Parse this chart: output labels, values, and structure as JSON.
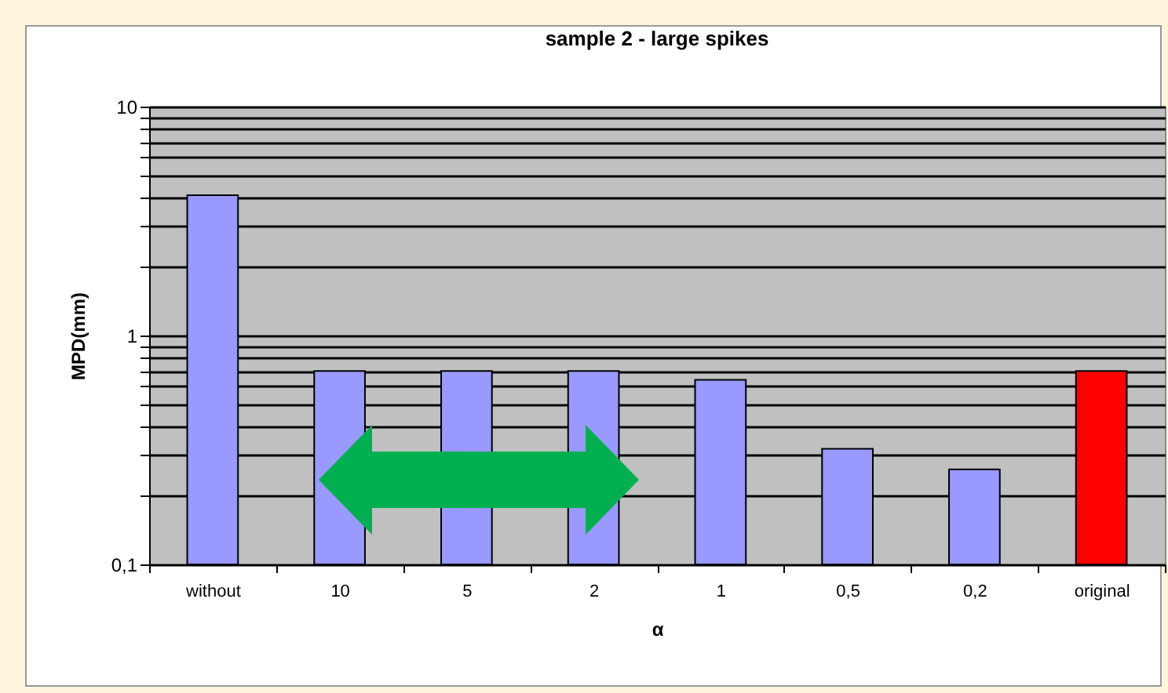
{
  "chart_data": {
    "type": "bar",
    "title": "sample 2 - large spikes",
    "xlabel": "α",
    "ylabel": "MPD(mm)",
    "categories": [
      "without",
      "10",
      "5",
      "2",
      "1",
      "0,5",
      "0,2",
      "original"
    ],
    "values": [
      4.1,
      0.7,
      0.7,
      0.7,
      0.64,
      0.32,
      0.26,
      0.7
    ],
    "colors": [
      "#9999ff",
      "#9999ff",
      "#9999ff",
      "#9999ff",
      "#9999ff",
      "#9999ff",
      "#9999ff",
      "#ff0000"
    ],
    "log": true,
    "ylim": [
      0.1,
      10
    ],
    "yticks": [
      {
        "value": 0.1,
        "label": "0,1"
      },
      {
        "value": 0.2,
        "label": null
      },
      {
        "value": 0.3,
        "label": null
      },
      {
        "value": 0.4,
        "label": null
      },
      {
        "value": 0.5,
        "label": null
      },
      {
        "value": 0.6,
        "label": null
      },
      {
        "value": 0.7,
        "label": null
      },
      {
        "value": 0.8,
        "label": null
      },
      {
        "value": 0.9,
        "label": null
      },
      1,
      {
        "value": 2,
        "label": null
      },
      {
        "value": 3,
        "label": null
      },
      {
        "value": 4,
        "label": null
      },
      {
        "value": 5,
        "label": null
      },
      {
        "value": 6,
        "label": null
      },
      {
        "value": 7,
        "label": null
      },
      {
        "value": 8,
        "label": null
      },
      {
        "value": 9,
        "label": null
      },
      10
    ],
    "grid": "y",
    "legend": false
  }
}
